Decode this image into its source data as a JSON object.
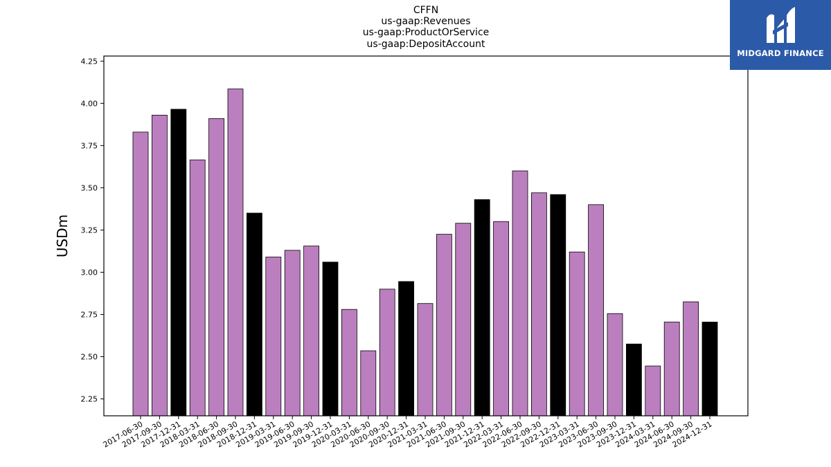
{
  "chart_data": {
    "type": "bar",
    "title_lines": [
      "CFFN",
      "us-gaap:Revenues",
      "us-gaap:ProductOrService",
      "us-gaap:DepositAccount"
    ],
    "ylabel": "USDm",
    "xlabel": "",
    "ylim": [
      2.15,
      4.28
    ],
    "yticks": [
      "2.25",
      "2.50",
      "2.75",
      "3.00",
      "3.25",
      "3.50",
      "3.75",
      "4.00",
      "4.25"
    ],
    "categories": [
      "2017-06-30",
      "2017-09-30",
      "2017-12-31",
      "2018-03-31",
      "2018-06-30",
      "2018-09-30",
      "2018-12-31",
      "2019-03-31",
      "2019-06-30",
      "2019-09-30",
      "2019-12-31",
      "2020-03-31",
      "2020-06-30",
      "2020-09-30",
      "2020-12-31",
      "2021-03-31",
      "2021-06-30",
      "2021-09-30",
      "2021-12-31",
      "2022-03-31",
      "2022-06-30",
      "2022-09-30",
      "2022-12-31",
      "2023-03-31",
      "2023-06-30",
      "2023-09-30",
      "2023-12-31",
      "2024-03-31",
      "2024-06-30",
      "2024-09-30",
      "2024-12-31"
    ],
    "values": [
      3.83,
      3.93,
      3.965,
      3.665,
      3.91,
      4.085,
      3.35,
      3.09,
      3.13,
      3.155,
      3.06,
      2.78,
      2.535,
      2.9,
      2.945,
      2.815,
      3.225,
      3.29,
      3.43,
      3.3,
      3.6,
      3.47,
      3.46,
      3.12,
      3.4,
      2.755,
      2.575,
      2.445,
      2.705,
      2.825,
      2.705
    ],
    "bar_colors": [
      "#bb7fbf",
      "#bb7fbf",
      "#000000",
      "#bb7fbf",
      "#bb7fbf",
      "#bb7fbf",
      "#000000",
      "#bb7fbf",
      "#bb7fbf",
      "#bb7fbf",
      "#000000",
      "#bb7fbf",
      "#bb7fbf",
      "#bb7fbf",
      "#000000",
      "#bb7fbf",
      "#bb7fbf",
      "#bb7fbf",
      "#000000",
      "#bb7fbf",
      "#bb7fbf",
      "#bb7fbf",
      "#000000",
      "#bb7fbf",
      "#bb7fbf",
      "#bb7fbf",
      "#000000",
      "#bb7fbf",
      "#bb7fbf",
      "#bb7fbf",
      "#000000"
    ],
    "grid": false,
    "legend": "none"
  },
  "logo": {
    "text": "MIDGARD FINANCE",
    "background": "#2b5aa8",
    "icon": "midgard-logo-icon"
  }
}
